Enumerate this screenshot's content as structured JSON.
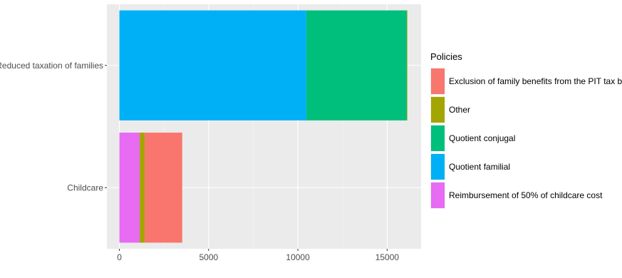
{
  "chart_data": {
    "type": "bar",
    "orientation": "horizontal",
    "stacked": true,
    "categories": [
      "Childcare",
      "Reduced taxation of families"
    ],
    "series": [
      {
        "name": "Exclusion of family benefits from the PIT tax basis",
        "color": "#F8766D",
        "values": [
          2100,
          0
        ]
      },
      {
        "name": "Other",
        "color": "#A3A500",
        "values": [
          280,
          30
        ]
      },
      {
        "name": "Quotient conjugal",
        "color": "#00BF7D",
        "values": [
          0,
          5630
        ]
      },
      {
        "name": "Quotient familial",
        "color": "#00B0F6",
        "values": [
          0,
          10470
        ]
      },
      {
        "name": "Reimbursement of 50% of childcare cost",
        "color": "#E76BF3",
        "values": [
          1140,
          0
        ]
      }
    ],
    "xticks": [
      0,
      5000,
      10000,
      15000
    ],
    "xlim": [
      -700,
      16900
    ],
    "title": "",
    "xlabel": "",
    "ylabel": "",
    "legend_title": "Policies",
    "legend_position": "right",
    "grid": true,
    "panel_color": "#EBEBEB"
  }
}
